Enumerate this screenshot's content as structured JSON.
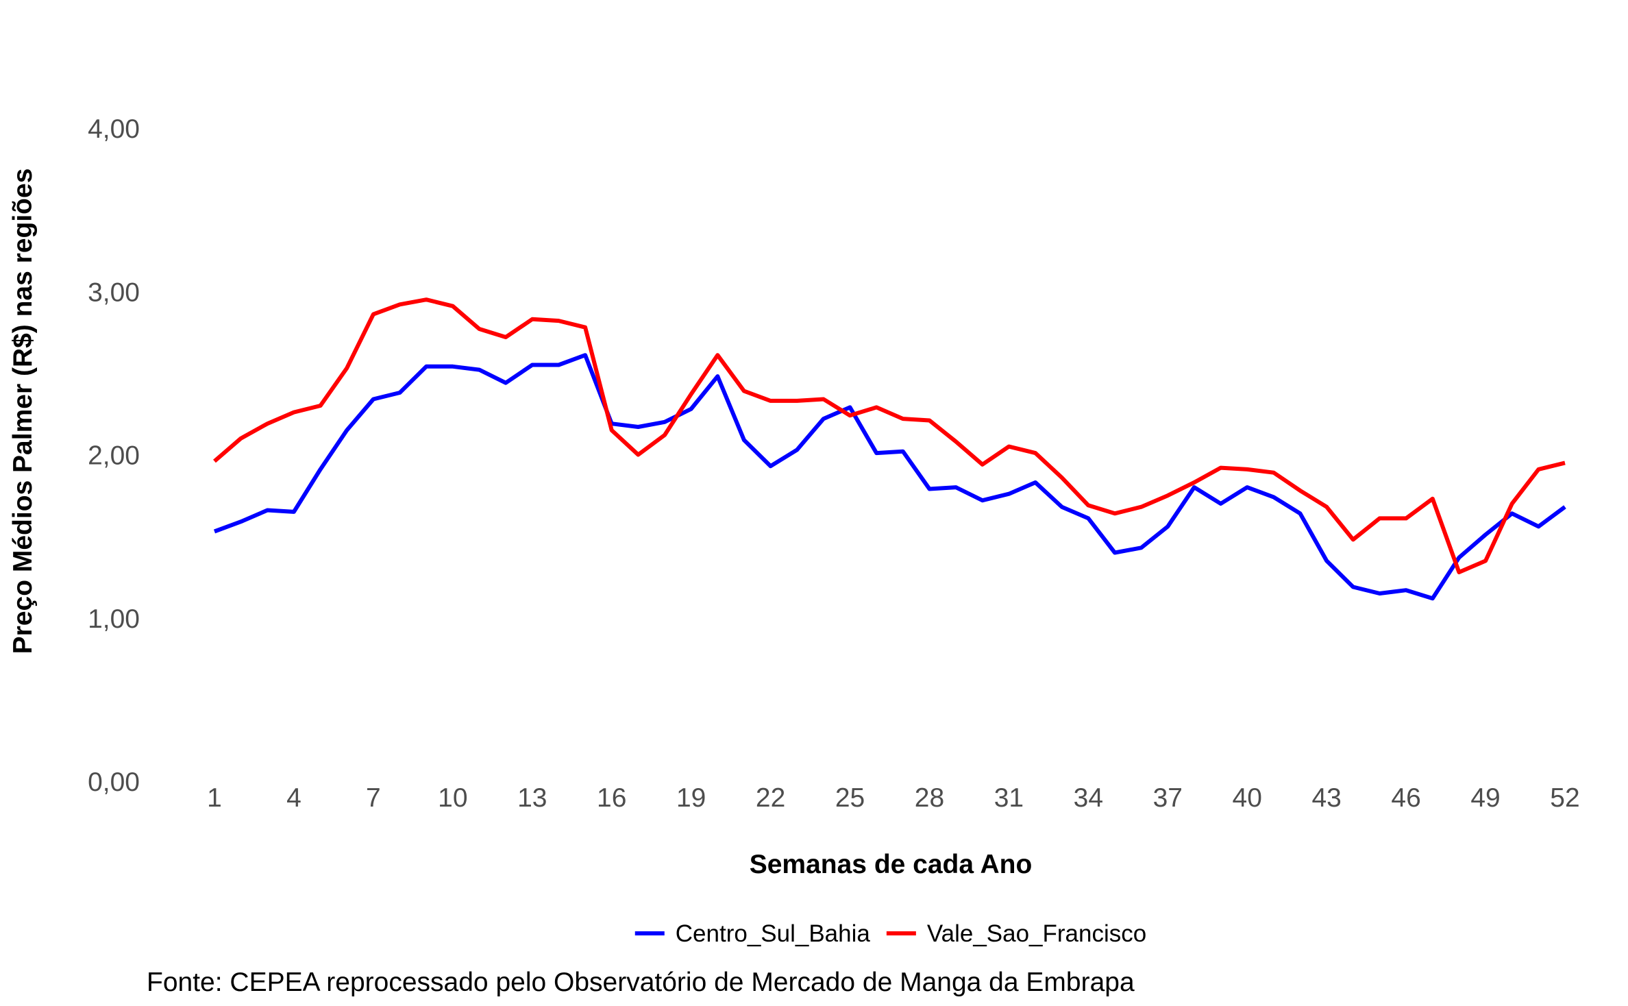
{
  "chart_data": {
    "type": "line",
    "title": "",
    "xlabel": "Semanas de cada Ano",
    "ylabel": "Preço Médios Palmer (R$) nas regiões",
    "caption": "Fonte: CEPEA reprocessado pelo Observatório de Mercado de Manga da Embrapa",
    "x": [
      1,
      2,
      3,
      4,
      5,
      6,
      7,
      8,
      9,
      10,
      11,
      12,
      13,
      14,
      15,
      16,
      17,
      18,
      19,
      20,
      21,
      22,
      23,
      24,
      25,
      26,
      27,
      28,
      29,
      30,
      31,
      32,
      33,
      34,
      35,
      36,
      37,
      38,
      39,
      40,
      41,
      42,
      43,
      44,
      45,
      46,
      47,
      48,
      49,
      50,
      51,
      52
    ],
    "xticks": [
      1,
      4,
      7,
      10,
      13,
      16,
      19,
      22,
      25,
      28,
      31,
      34,
      37,
      40,
      43,
      46,
      49,
      52
    ],
    "xtick_labels": [
      "1",
      "4",
      "7",
      "10",
      "13",
      "16",
      "19",
      "22",
      "25",
      "28",
      "31",
      "34",
      "37",
      "40",
      "43",
      "46",
      "49",
      "52"
    ],
    "xlim": [
      1,
      52
    ],
    "yticks": [
      0,
      1,
      2,
      3,
      4
    ],
    "ytick_labels": [
      "0,00",
      "1,00",
      "2,00",
      "3,00",
      "4,00"
    ],
    "ylim": [
      0,
      4
    ],
    "grid": false,
    "legend_position": "bottom",
    "series": [
      {
        "name": "Centro_Sul_Bahia",
        "color": "#0000ff",
        "values": [
          1.53,
          1.59,
          1.66,
          1.65,
          1.91,
          2.15,
          2.34,
          2.38,
          2.54,
          2.54,
          2.52,
          2.44,
          2.55,
          2.55,
          2.61,
          2.19,
          2.17,
          2.2,
          2.28,
          2.48,
          2.09,
          1.93,
          2.03,
          2.22,
          2.29,
          2.01,
          2.02,
          1.79,
          1.8,
          1.72,
          1.76,
          1.83,
          1.68,
          1.61,
          1.4,
          1.43,
          1.56,
          1.8,
          1.7,
          1.8,
          1.74,
          1.64,
          1.35,
          1.19,
          1.15,
          1.17,
          1.12,
          1.37,
          1.51,
          1.64,
          1.56,
          1.68
        ]
      },
      {
        "name": "Vale_Sao_Francisco",
        "color": "#ff0000",
        "values": [
          1.96,
          2.1,
          2.19,
          2.26,
          2.3,
          2.53,
          2.86,
          2.92,
          2.95,
          2.91,
          2.77,
          2.72,
          2.83,
          2.82,
          2.78,
          2.15,
          2.0,
          2.12,
          2.37,
          2.61,
          2.39,
          2.33,
          2.33,
          2.34,
          2.24,
          2.29,
          2.22,
          2.21,
          2.08,
          1.94,
          2.05,
          2.01,
          1.86,
          1.69,
          1.64,
          1.68,
          1.75,
          1.83,
          1.92,
          1.91,
          1.89,
          1.78,
          1.68,
          1.48,
          1.61,
          1.61,
          1.73,
          1.28,
          1.35,
          1.7,
          1.91,
          1.95
        ]
      }
    ]
  }
}
